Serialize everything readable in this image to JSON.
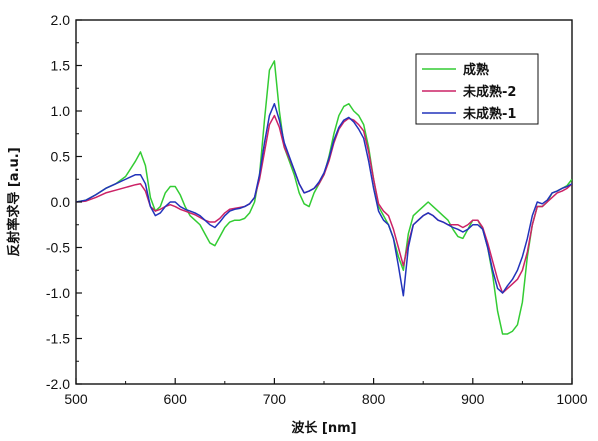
{
  "chart_data": {
    "type": "line",
    "xlabel": "波长 [nm]",
    "ylabel": "反射率求导 [a.u.]",
    "xlim": [
      500,
      1000
    ],
    "ylim": [
      -2.0,
      2.0
    ],
    "xticks": [
      "500",
      "600",
      "700",
      "800",
      "900",
      "1000"
    ],
    "yticks": [
      "-2.0",
      "-1.5",
      "-1.0",
      "-0.5",
      "0.0",
      "0.5",
      "1.0",
      "1.5",
      "2.0"
    ],
    "grid": false,
    "legend_position": "top-right",
    "series": [
      {
        "name": "成熟",
        "color": "#33cc33",
        "x": [
          500,
          510,
          520,
          530,
          540,
          550,
          560,
          565,
          570,
          575,
          580,
          585,
          590,
          595,
          600,
          605,
          610,
          615,
          620,
          625,
          630,
          635,
          640,
          645,
          650,
          655,
          660,
          665,
          670,
          675,
          680,
          685,
          690,
          695,
          700,
          705,
          710,
          715,
          720,
          725,
          730,
          735,
          740,
          745,
          750,
          755,
          760,
          765,
          770,
          775,
          780,
          785,
          790,
          795,
          800,
          805,
          810,
          815,
          820,
          825,
          830,
          835,
          840,
          845,
          850,
          855,
          860,
          865,
          870,
          875,
          880,
          885,
          890,
          895,
          900,
          905,
          910,
          915,
          920,
          925,
          930,
          935,
          940,
          945,
          950,
          955,
          960,
          965,
          970,
          975,
          980,
          985,
          990,
          995,
          1000
        ],
        "values": [
          0.0,
          0.02,
          0.08,
          0.15,
          0.2,
          0.28,
          0.45,
          0.55,
          0.4,
          0.05,
          -0.1,
          -0.05,
          0.1,
          0.17,
          0.17,
          0.08,
          -0.05,
          -0.15,
          -0.2,
          -0.25,
          -0.35,
          -0.45,
          -0.48,
          -0.38,
          -0.28,
          -0.22,
          -0.2,
          -0.2,
          -0.18,
          -0.12,
          0.0,
          0.3,
          0.9,
          1.45,
          1.55,
          1.0,
          0.6,
          0.45,
          0.3,
          0.1,
          -0.02,
          -0.05,
          0.1,
          0.2,
          0.3,
          0.5,
          0.75,
          0.95,
          1.05,
          1.08,
          1.0,
          0.95,
          0.85,
          0.6,
          0.25,
          -0.05,
          -0.15,
          -0.25,
          -0.4,
          -0.6,
          -0.75,
          -0.35,
          -0.15,
          -0.1,
          -0.05,
          0.0,
          -0.05,
          -0.1,
          -0.15,
          -0.2,
          -0.3,
          -0.38,
          -0.4,
          -0.3,
          -0.2,
          -0.2,
          -0.3,
          -0.5,
          -0.8,
          -1.2,
          -1.45,
          -1.45,
          -1.42,
          -1.35,
          -1.1,
          -0.6,
          -0.25,
          -0.05,
          -0.05,
          0.0,
          0.1,
          0.12,
          0.15,
          0.18,
          0.25
        ]
      },
      {
        "name": "未成熟-2",
        "color": "#cc2266",
        "x": [
          500,
          510,
          520,
          530,
          540,
          550,
          560,
          565,
          570,
          575,
          580,
          585,
          590,
          595,
          600,
          605,
          610,
          615,
          620,
          625,
          630,
          635,
          640,
          645,
          650,
          655,
          660,
          665,
          670,
          675,
          680,
          685,
          690,
          695,
          700,
          705,
          710,
          715,
          720,
          725,
          730,
          735,
          740,
          745,
          750,
          755,
          760,
          765,
          770,
          775,
          780,
          785,
          790,
          795,
          800,
          805,
          810,
          815,
          820,
          825,
          830,
          835,
          840,
          845,
          850,
          855,
          860,
          865,
          870,
          875,
          880,
          885,
          890,
          895,
          900,
          905,
          910,
          915,
          920,
          925,
          930,
          935,
          940,
          945,
          950,
          955,
          960,
          965,
          970,
          975,
          980,
          985,
          990,
          995,
          1000
        ],
        "values": [
          0.0,
          0.01,
          0.05,
          0.1,
          0.13,
          0.16,
          0.19,
          0.2,
          0.12,
          -0.05,
          -0.1,
          -0.08,
          -0.05,
          -0.03,
          -0.05,
          -0.08,
          -0.1,
          -0.12,
          -0.14,
          -0.17,
          -0.2,
          -0.22,
          -0.22,
          -0.18,
          -0.12,
          -0.08,
          -0.07,
          -0.06,
          -0.05,
          -0.02,
          0.05,
          0.25,
          0.55,
          0.85,
          0.95,
          0.82,
          0.6,
          0.48,
          0.35,
          0.2,
          0.1,
          0.12,
          0.15,
          0.2,
          0.3,
          0.45,
          0.65,
          0.8,
          0.88,
          0.92,
          0.9,
          0.85,
          0.78,
          0.55,
          0.25,
          -0.02,
          -0.1,
          -0.15,
          -0.3,
          -0.5,
          -0.7,
          -0.45,
          -0.25,
          -0.2,
          -0.15,
          -0.12,
          -0.15,
          -0.2,
          -0.22,
          -0.25,
          -0.25,
          -0.25,
          -0.28,
          -0.25,
          -0.2,
          -0.2,
          -0.28,
          -0.45,
          -0.65,
          -0.85,
          -1.0,
          -0.95,
          -0.9,
          -0.85,
          -0.75,
          -0.55,
          -0.25,
          -0.05,
          -0.05,
          0.0,
          0.05,
          0.1,
          0.12,
          0.15,
          0.2
        ]
      },
      {
        "name": "未成熟-1",
        "color": "#2233bb",
        "x": [
          500,
          510,
          520,
          530,
          540,
          550,
          560,
          565,
          570,
          575,
          580,
          585,
          590,
          595,
          600,
          605,
          610,
          615,
          620,
          625,
          630,
          635,
          640,
          645,
          650,
          655,
          660,
          665,
          670,
          675,
          680,
          685,
          690,
          695,
          700,
          705,
          710,
          715,
          720,
          725,
          730,
          735,
          740,
          745,
          750,
          755,
          760,
          765,
          770,
          775,
          780,
          785,
          790,
          795,
          800,
          805,
          810,
          815,
          820,
          825,
          830,
          835,
          840,
          845,
          850,
          855,
          860,
          865,
          870,
          875,
          880,
          885,
          890,
          895,
          900,
          905,
          910,
          915,
          920,
          925,
          930,
          935,
          940,
          945,
          950,
          955,
          960,
          965,
          970,
          975,
          980,
          985,
          990,
          995,
          1000
        ],
        "values": [
          0.0,
          0.02,
          0.08,
          0.15,
          0.2,
          0.25,
          0.3,
          0.3,
          0.2,
          -0.05,
          -0.15,
          -0.12,
          -0.05,
          0.0,
          0.0,
          -0.05,
          -0.08,
          -0.1,
          -0.12,
          -0.15,
          -0.2,
          -0.25,
          -0.28,
          -0.22,
          -0.15,
          -0.1,
          -0.08,
          -0.07,
          -0.05,
          -0.02,
          0.05,
          0.3,
          0.65,
          0.95,
          1.08,
          0.9,
          0.65,
          0.5,
          0.35,
          0.2,
          0.1,
          0.12,
          0.15,
          0.22,
          0.32,
          0.48,
          0.68,
          0.82,
          0.9,
          0.93,
          0.88,
          0.8,
          0.7,
          0.45,
          0.15,
          -0.1,
          -0.2,
          -0.25,
          -0.4,
          -0.7,
          -1.03,
          -0.5,
          -0.25,
          -0.2,
          -0.15,
          -0.12,
          -0.15,
          -0.2,
          -0.22,
          -0.25,
          -0.28,
          -0.3,
          -0.33,
          -0.3,
          -0.25,
          -0.25,
          -0.3,
          -0.5,
          -0.75,
          -0.95,
          -1.0,
          -0.92,
          -0.85,
          -0.75,
          -0.6,
          -0.4,
          -0.15,
          0.0,
          -0.02,
          0.02,
          0.1,
          0.12,
          0.15,
          0.17,
          0.2
        ]
      }
    ]
  }
}
